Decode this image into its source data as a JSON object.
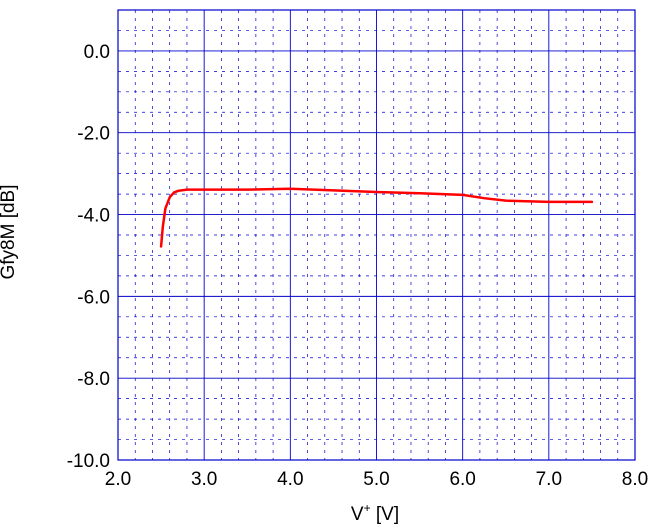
{
  "chart_data": {
    "type": "line",
    "xlabel": "V",
    "xlabel_sup": "+",
    "xlabel_unit": " [V]",
    "ylabel": "Gfy8M [dB]",
    "xlim": [
      2.0,
      8.0
    ],
    "ylim": [
      -10.0,
      1.0
    ],
    "x_ticks": [
      "2.0",
      "3.0",
      "4.0",
      "5.0",
      "6.0",
      "7.0",
      "8.0"
    ],
    "y_ticks": [
      "0.0",
      "-2.0",
      "-4.0",
      "-6.0",
      "-8.0",
      "-10.0"
    ],
    "grid": true,
    "colors": {
      "series": "#ff0000",
      "grid": "#0000cc",
      "frame": "#0000cc"
    },
    "series": [
      {
        "x": [
          2.5,
          2.52,
          2.55,
          2.6,
          2.65,
          2.7,
          2.8,
          3.0,
          3.5,
          4.0,
          4.5,
          5.0,
          5.5,
          6.0,
          6.25,
          6.5,
          7.0,
          7.5
        ],
        "y": [
          -4.78,
          -4.3,
          -3.85,
          -3.58,
          -3.46,
          -3.42,
          -3.39,
          -3.39,
          -3.39,
          -3.37,
          -3.41,
          -3.45,
          -3.48,
          -3.52,
          -3.6,
          -3.66,
          -3.69,
          -3.69
        ]
      }
    ]
  }
}
